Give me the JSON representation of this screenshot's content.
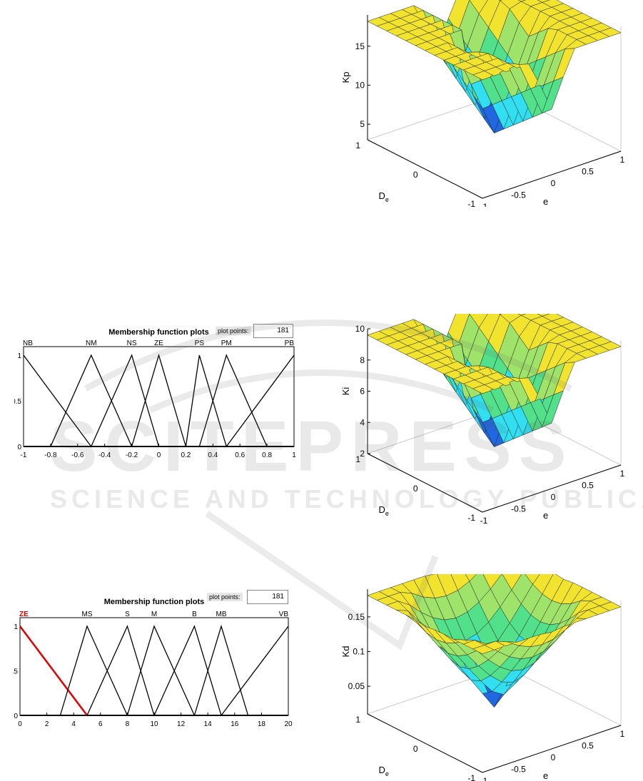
{
  "colors": {
    "yellow": "#f2e42e",
    "ygreen": "#9fe36a",
    "green": "#52e08a",
    "cyan": "#32dff1",
    "blue": "#2167e0",
    "mfline": "#000000",
    "selected": "#e00000"
  },
  "mf_input": {
    "title": "Membership function plots",
    "plot_points_label": "plot points:",
    "plot_points": "181"
  },
  "mf_output": {
    "title": "Membership function plots",
    "plot_points_label": "plot points:",
    "plot_points": "181"
  },
  "chart_data": [
    {
      "type": "line",
      "subtype": "membership-functions",
      "title": "Membership function plots",
      "xlim": [
        -1,
        1
      ],
      "ylim": [
        0,
        1
      ],
      "xticks": [
        "-1",
        "-0.8",
        "-0.6",
        "-0.4",
        "-0.2",
        "0",
        "0.2",
        "0.4",
        "0.6",
        "0.8",
        "1"
      ],
      "yticks": [
        "0",
        "0.5",
        "1"
      ],
      "series": [
        {
          "name": "NB",
          "points": [
            [
              -1,
              1
            ],
            [
              -0.5,
              0
            ]
          ]
        },
        {
          "name": "NM",
          "points": [
            [
              -0.8,
              0
            ],
            [
              -0.5,
              1
            ],
            [
              -0.2,
              0
            ]
          ]
        },
        {
          "name": "NS",
          "points": [
            [
              -0.5,
              0
            ],
            [
              -0.2,
              1
            ],
            [
              0,
              0
            ]
          ]
        },
        {
          "name": "ZE",
          "points": [
            [
              -0.2,
              0
            ],
            [
              0,
              1
            ],
            [
              0.2,
              0
            ]
          ]
        },
        {
          "name": "PS",
          "points": [
            [
              0.2,
              0
            ],
            [
              0.3,
              1
            ],
            [
              0.5,
              0
            ]
          ]
        },
        {
          "name": "PM",
          "points": [
            [
              0.3,
              0
            ],
            [
              0.5,
              1
            ],
            [
              0.8,
              0
            ]
          ]
        },
        {
          "name": "PB",
          "points": [
            [
              0.5,
              0
            ],
            [
              1,
              1
            ]
          ]
        }
      ]
    },
    {
      "type": "line",
      "subtype": "membership-functions",
      "title": "Membership function plots",
      "xlim": [
        0,
        20
      ],
      "ylim": [
        0,
        1
      ],
      "xticks": [
        "0",
        "2",
        "4",
        "6",
        "8",
        "10",
        "12",
        "14",
        "16",
        "18",
        "20"
      ],
      "yticks": [
        "0",
        "0.5",
        "1"
      ],
      "selected": "ZE",
      "series": [
        {
          "name": "ZE",
          "points": [
            [
              0,
              1
            ],
            [
              5,
              0
            ]
          ]
        },
        {
          "name": "MS",
          "points": [
            [
              3,
              0
            ],
            [
              5,
              1
            ],
            [
              8,
              0
            ]
          ]
        },
        {
          "name": "S",
          "points": [
            [
              5,
              0
            ],
            [
              8,
              1
            ],
            [
              10,
              0
            ]
          ]
        },
        {
          "name": "M",
          "points": [
            [
              8,
              0
            ],
            [
              10,
              1
            ],
            [
              13,
              0
            ]
          ]
        },
        {
          "name": "B",
          "points": [
            [
              10,
              0
            ],
            [
              13,
              1
            ],
            [
              15,
              0
            ]
          ]
        },
        {
          "name": "MB",
          "points": [
            [
              13,
              0
            ],
            [
              15,
              1
            ],
            [
              17,
              0
            ]
          ]
        },
        {
          "name": "VB",
          "points": [
            [
              15,
              0
            ],
            [
              20,
              1
            ]
          ]
        }
      ]
    },
    {
      "type": "surface",
      "zlabel": "Kp",
      "xlabel": "e",
      "ylabel": "D_e",
      "xlim": [
        -1,
        1
      ],
      "ylim": [
        -1,
        1
      ],
      "zlim": [
        3,
        19
      ],
      "xticks": [
        "-1",
        "-0.5",
        "0",
        "0.5",
        "1"
      ],
      "yticks": [
        "-1",
        "0",
        "1"
      ],
      "zticks": [
        "5",
        "10",
        "15"
      ],
      "shape": "valley",
      "zmin": 3,
      "zmax": 18
    },
    {
      "type": "surface",
      "zlabel": "Ki",
      "xlabel": "e",
      "ylabel": "D_e",
      "xlim": [
        -1,
        1
      ],
      "ylim": [
        -1,
        1
      ],
      "zlim": [
        2,
        10
      ],
      "xticks": [
        "-1",
        "-0.5",
        "0",
        "0.5",
        "1"
      ],
      "yticks": [
        "-1",
        "0",
        "1"
      ],
      "zticks": [
        "2",
        "4",
        "6",
        "8",
        "10"
      ],
      "shape": "valley",
      "zmin": 2,
      "zmax": 10
    },
    {
      "type": "surface",
      "zlabel": "Kd",
      "xlabel": "e",
      "ylabel": "D_e",
      "xlim": [
        -1,
        1
      ],
      "ylim": [
        -1,
        1
      ],
      "zlim": [
        0.01,
        0.19
      ],
      "xticks": [
        "-1",
        "-0.5",
        "0",
        "0.5",
        "1"
      ],
      "yticks": [
        "-1",
        "0",
        "1"
      ],
      "zticks": [
        "0.05",
        "0.1",
        "0.15"
      ],
      "shape": "bowl",
      "zmin": 0.02,
      "zmax": 0.18
    }
  ]
}
